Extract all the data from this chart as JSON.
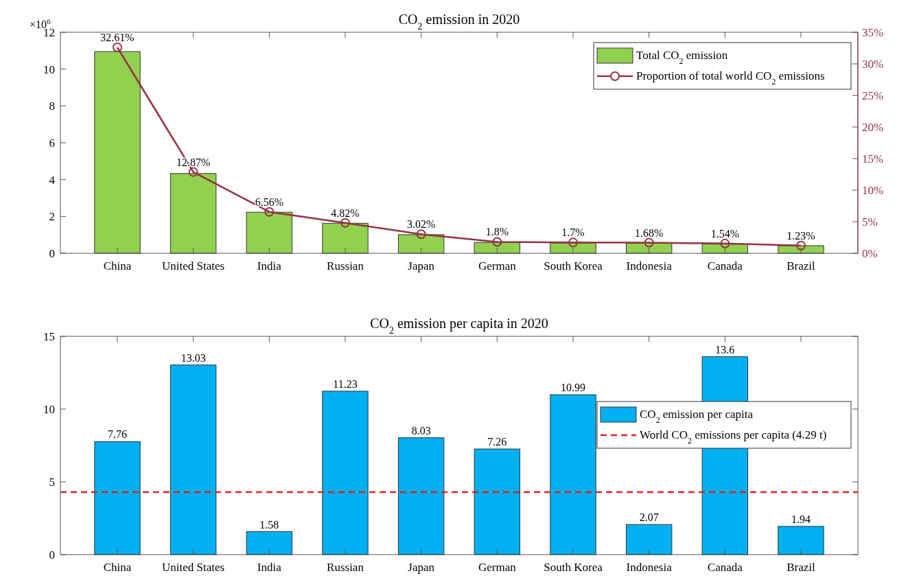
{
  "chart_data": [
    {
      "type": "bar",
      "title": "CO$_{2}$ emission in 2020",
      "annotations": [
        "×10$^{6}$"
      ],
      "categories": [
        "China",
        "United States",
        "India",
        "Russian",
        "Japan",
        "German",
        "South Korea",
        "Indonesia",
        "Canada",
        "Brazil"
      ],
      "series": [
        {
          "name": "Total CO$_{2}$ emission",
          "color": "#92d050",
          "values": [
            10.95,
            4.33,
            2.23,
            1.63,
            1.01,
            0.59,
            0.56,
            0.55,
            0.5,
            0.41
          ]
        },
        {
          "type": "line",
          "axis": "y2",
          "name": "Proportion of total world CO$_{2}$ emissions",
          "color": "#953144",
          "marker": "circle",
          "values": [
            32.61,
            12.87,
            6.56,
            4.82,
            3.02,
            1.8,
            1.7,
            1.68,
            1.54,
            1.23
          ],
          "value_labels": [
            "32.61%",
            "12.87%",
            "6.56%",
            "4.82%",
            "3.02%",
            "1.8%",
            "1.7%",
            "1.68%",
            "1.54%",
            "1.23%"
          ]
        }
      ],
      "ylim": [
        0,
        12
      ],
      "yticks": [
        0,
        2,
        4,
        6,
        8,
        10,
        12
      ],
      "y2lim": [
        0,
        35
      ],
      "y2ticks": [
        {
          "value": 0,
          "label": "0%"
        },
        {
          "value": 5,
          "label": "5%"
        },
        {
          "value": 10,
          "label": "10%"
        },
        {
          "value": 15,
          "label": "15%"
        },
        {
          "value": 20,
          "label": "20%"
        },
        {
          "value": 25,
          "label": "25%"
        },
        {
          "value": 30,
          "label": "30%"
        },
        {
          "value": 35,
          "label": "35%"
        }
      ],
      "legend": "top right",
      "grid": false
    },
    {
      "type": "bar",
      "title": "CO$_{2}$ emission per capita in 2020",
      "categories": [
        "China",
        "United States",
        "India",
        "Russian",
        "Japan",
        "German",
        "South Korea",
        "Indonesia",
        "Canada",
        "Brazil"
      ],
      "series": [
        {
          "name": "CO$_{2}$ emission per capita",
          "color": "#00b0f0",
          "values": [
            7.76,
            13.03,
            1.58,
            11.23,
            8.03,
            7.26,
            10.99,
            2.07,
            13.6,
            1.94
          ]
        }
      ],
      "data_labels": true,
      "ylim": [
        0,
        15
      ],
      "yticks": [
        0,
        5,
        10,
        15
      ],
      "ref_lines": [
        {
          "axis": "y",
          "value": 4.29,
          "label": "World CO$_{2}$ emissions per capita (4.29 t)",
          "color": "#e02020",
          "line_style": "dashed"
        }
      ],
      "legend": "right",
      "grid": false
    }
  ]
}
